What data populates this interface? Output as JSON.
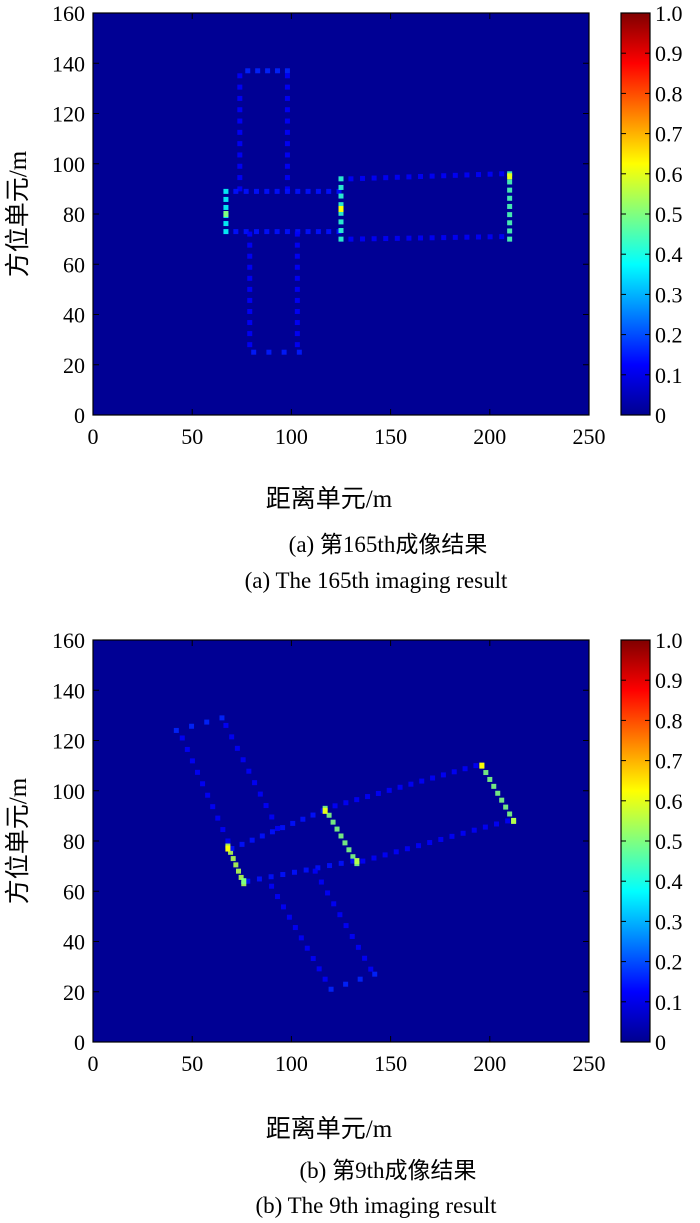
{
  "chart_data": [
    {
      "type": "heatmap",
      "caption_cn": "(a) 第165th成像结果",
      "caption_en": "(a) The 165th imaging result",
      "xlabel": "距离单元/m",
      "ylabel": "方位单元/m",
      "xlim": [
        0,
        250
      ],
      "ylim": [
        0,
        160
      ],
      "xticks": [
        "0",
        "50",
        "100",
        "150",
        "200",
        "250"
      ],
      "yticks": [
        "0",
        "20",
        "40",
        "60",
        "80",
        "100",
        "120",
        "140",
        "160"
      ],
      "colorbar": {
        "range": [
          0,
          1.0
        ],
        "ticks": [
          "0",
          "0.1",
          "0.2",
          "0.3",
          "0.4",
          "0.5",
          "0.6",
          "0.7",
          "0.8",
          "0.9",
          "1.0"
        ]
      },
      "background_value": 0.02,
      "scatterers": [
        {
          "x1": 78,
          "y1": 137,
          "x2": 98,
          "y2": 137,
          "n": 5,
          "v": 0.16
        },
        {
          "x1": 74,
          "y1": 135,
          "x2": 74,
          "y2": 90,
          "n": 11,
          "v": 0.12
        },
        {
          "x1": 98,
          "y1": 135,
          "x2": 98,
          "y2": 90,
          "n": 11,
          "v": 0.12
        },
        {
          "x1": 72,
          "y1": 89,
          "x2": 124,
          "y2": 89,
          "n": 11,
          "v": 0.14
        },
        {
          "x1": 72,
          "y1": 73,
          "x2": 124,
          "y2": 73,
          "n": 11,
          "v": 0.14
        },
        {
          "x1": 67,
          "y1": 89,
          "x2": 67,
          "y2": 73,
          "n": 6,
          "v": 0.38
        },
        {
          "x1": 125,
          "y1": 94,
          "x2": 125,
          "y2": 70,
          "n": 8,
          "v": 0.42
        },
        {
          "x1": 210,
          "y1": 96,
          "x2": 210,
          "y2": 70,
          "n": 9,
          "v": 0.45
        },
        {
          "x1": 130,
          "y1": 94,
          "x2": 206,
          "y2": 96,
          "n": 14,
          "v": 0.12
        },
        {
          "x1": 130,
          "y1": 70,
          "x2": 206,
          "y2": 71,
          "n": 14,
          "v": 0.12
        },
        {
          "x1": 79,
          "y1": 72,
          "x2": 79,
          "y2": 28,
          "n": 11,
          "v": 0.12
        },
        {
          "x1": 103,
          "y1": 72,
          "x2": 103,
          "y2": 28,
          "n": 11,
          "v": 0.12
        },
        {
          "x1": 81,
          "y1": 25,
          "x2": 104,
          "y2": 25,
          "n": 4,
          "v": 0.15
        }
      ],
      "bright": [
        {
          "x": 125,
          "y": 82,
          "v": 0.62
        },
        {
          "x": 210,
          "y": 95,
          "v": 0.6
        },
        {
          "x": 67,
          "y": 80,
          "v": 0.5
        }
      ]
    },
    {
      "type": "heatmap",
      "caption_cn": "(b) 第9th成像结果",
      "caption_en": "(b) The 9th imaging result",
      "xlabel": "距离单元/m",
      "ylabel": "方位单元/m",
      "xlim": [
        0,
        250
      ],
      "ylim": [
        0,
        160
      ],
      "xticks": [
        "0",
        "50",
        "100",
        "150",
        "200",
        "250"
      ],
      "yticks": [
        "0",
        "20",
        "40",
        "60",
        "80",
        "100",
        "120",
        "140",
        "160"
      ],
      "colorbar": {
        "range": [
          0,
          1.0
        ],
        "ticks": [
          "0",
          "0.1",
          "0.2",
          "0.3",
          "0.4",
          "0.5",
          "0.6",
          "0.7",
          "0.8",
          "0.9",
          "1.0"
        ]
      },
      "background_value": 0.02,
      "scatterers": [
        {
          "x1": 42,
          "y1": 124,
          "x2": 65,
          "y2": 129,
          "n": 4,
          "v": 0.16
        },
        {
          "x1": 45,
          "y1": 121,
          "x2": 68,
          "y2": 80,
          "n": 10,
          "v": 0.12
        },
        {
          "x1": 67,
          "y1": 126,
          "x2": 93,
          "y2": 85,
          "n": 10,
          "v": 0.12
        },
        {
          "x1": 68,
          "y1": 78,
          "x2": 76,
          "y2": 63,
          "n": 7,
          "v": 0.55
        },
        {
          "x1": 117,
          "y1": 93,
          "x2": 133,
          "y2": 71,
          "n": 9,
          "v": 0.5
        },
        {
          "x1": 196,
          "y1": 110,
          "x2": 212,
          "y2": 88,
          "n": 9,
          "v": 0.5
        },
        {
          "x1": 70,
          "y1": 77,
          "x2": 116,
          "y2": 92,
          "n": 10,
          "v": 0.14
        },
        {
          "x1": 78,
          "y1": 64,
          "x2": 131,
          "y2": 72,
          "n": 10,
          "v": 0.14
        },
        {
          "x1": 122,
          "y1": 94,
          "x2": 193,
          "y2": 110,
          "n": 14,
          "v": 0.12
        },
        {
          "x1": 136,
          "y1": 72,
          "x2": 209,
          "y2": 88,
          "n": 14,
          "v": 0.12
        },
        {
          "x1": 90,
          "y1": 62,
          "x2": 117,
          "y2": 25,
          "n": 10,
          "v": 0.12
        },
        {
          "x1": 112,
          "y1": 68,
          "x2": 140,
          "y2": 29,
          "n": 10,
          "v": 0.12
        },
        {
          "x1": 120,
          "y1": 21,
          "x2": 142,
          "y2": 27,
          "n": 4,
          "v": 0.16
        }
      ],
      "bright": [
        {
          "x": 68,
          "y": 77,
          "v": 0.62
        },
        {
          "x": 117,
          "y": 92,
          "v": 0.6
        },
        {
          "x": 133,
          "y": 72,
          "v": 0.55
        },
        {
          "x": 196,
          "y": 110,
          "v": 0.62
        },
        {
          "x": 212,
          "y": 88,
          "v": 0.55
        },
        {
          "x": 76,
          "y": 64,
          "v": 0.5
        }
      ]
    }
  ]
}
